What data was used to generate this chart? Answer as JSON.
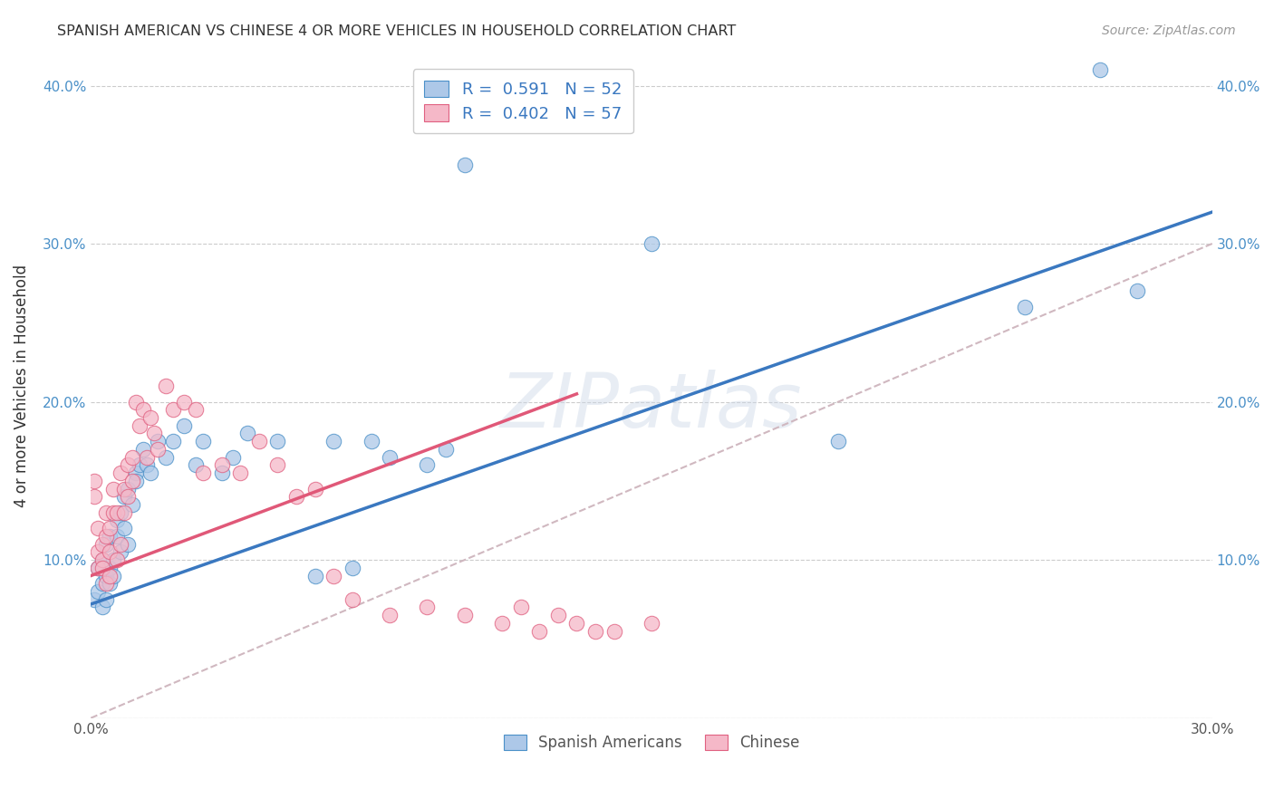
{
  "title": "SPANISH AMERICAN VS CHINESE 4 OR MORE VEHICLES IN HOUSEHOLD CORRELATION CHART",
  "source": "Source: ZipAtlas.com",
  "ylabel": "4 or more Vehicles in Household",
  "xlim": [
    0.0,
    0.3
  ],
  "ylim": [
    0.0,
    0.42
  ],
  "xticks": [
    0.0,
    0.05,
    0.1,
    0.15,
    0.2,
    0.25,
    0.3
  ],
  "yticks": [
    0.0,
    0.1,
    0.2,
    0.3,
    0.4
  ],
  "xtick_labels": [
    "0.0%",
    "",
    "",
    "",
    "",
    "",
    "30.0%"
  ],
  "ytick_labels": [
    "",
    "10.0%",
    "20.0%",
    "30.0%",
    "40.0%"
  ],
  "blue_R": "0.591",
  "blue_N": "52",
  "pink_R": "0.402",
  "pink_N": "57",
  "blue_color": "#adc8e8",
  "pink_color": "#f5b8c8",
  "blue_edge_color": "#4a90c8",
  "pink_edge_color": "#e06080",
  "blue_line_color": "#3a78c0",
  "pink_line_color": "#e05878",
  "diagonal_color": "#d0b8c0",
  "watermark": "ZIPatlas",
  "legend_blue_label": "Spanish Americans",
  "legend_pink_label": "Chinese",
  "blue_line_x0": 0.0,
  "blue_line_y0": 0.072,
  "blue_line_x1": 0.3,
  "blue_line_y1": 0.32,
  "pink_line_x0": 0.0,
  "pink_line_y0": 0.09,
  "pink_line_x1": 0.13,
  "pink_line_y1": 0.205,
  "blue_scatter_x": [
    0.001,
    0.002,
    0.002,
    0.003,
    0.003,
    0.003,
    0.004,
    0.004,
    0.004,
    0.005,
    0.005,
    0.005,
    0.006,
    0.006,
    0.007,
    0.007,
    0.008,
    0.008,
    0.009,
    0.009,
    0.01,
    0.01,
    0.011,
    0.012,
    0.012,
    0.013,
    0.014,
    0.015,
    0.016,
    0.018,
    0.02,
    0.022,
    0.025,
    0.028,
    0.03,
    0.035,
    0.038,
    0.042,
    0.05,
    0.06,
    0.065,
    0.07,
    0.075,
    0.08,
    0.09,
    0.095,
    0.1,
    0.15,
    0.2,
    0.25,
    0.27,
    0.28
  ],
  "blue_scatter_y": [
    0.075,
    0.08,
    0.095,
    0.07,
    0.085,
    0.1,
    0.075,
    0.09,
    0.11,
    0.095,
    0.085,
    0.115,
    0.1,
    0.09,
    0.115,
    0.125,
    0.105,
    0.13,
    0.12,
    0.14,
    0.11,
    0.145,
    0.135,
    0.155,
    0.15,
    0.16,
    0.17,
    0.16,
    0.155,
    0.175,
    0.165,
    0.175,
    0.185,
    0.16,
    0.175,
    0.155,
    0.165,
    0.18,
    0.175,
    0.09,
    0.175,
    0.095,
    0.175,
    0.165,
    0.16,
    0.17,
    0.35,
    0.3,
    0.175,
    0.26,
    0.41,
    0.27
  ],
  "pink_scatter_x": [
    0.001,
    0.001,
    0.002,
    0.002,
    0.002,
    0.003,
    0.003,
    0.003,
    0.004,
    0.004,
    0.004,
    0.005,
    0.005,
    0.005,
    0.006,
    0.006,
    0.007,
    0.007,
    0.008,
    0.008,
    0.009,
    0.009,
    0.01,
    0.01,
    0.011,
    0.011,
    0.012,
    0.013,
    0.014,
    0.015,
    0.016,
    0.017,
    0.018,
    0.02,
    0.022,
    0.025,
    0.028,
    0.03,
    0.035,
    0.04,
    0.045,
    0.05,
    0.055,
    0.06,
    0.065,
    0.07,
    0.08,
    0.09,
    0.1,
    0.11,
    0.115,
    0.12,
    0.125,
    0.13,
    0.135,
    0.14,
    0.15
  ],
  "pink_scatter_y": [
    0.15,
    0.14,
    0.095,
    0.105,
    0.12,
    0.1,
    0.11,
    0.095,
    0.115,
    0.085,
    0.13,
    0.105,
    0.09,
    0.12,
    0.13,
    0.145,
    0.1,
    0.13,
    0.155,
    0.11,
    0.13,
    0.145,
    0.16,
    0.14,
    0.165,
    0.15,
    0.2,
    0.185,
    0.195,
    0.165,
    0.19,
    0.18,
    0.17,
    0.21,
    0.195,
    0.2,
    0.195,
    0.155,
    0.16,
    0.155,
    0.175,
    0.16,
    0.14,
    0.145,
    0.09,
    0.075,
    0.065,
    0.07,
    0.065,
    0.06,
    0.07,
    0.055,
    0.065,
    0.06,
    0.055,
    0.055,
    0.06
  ]
}
